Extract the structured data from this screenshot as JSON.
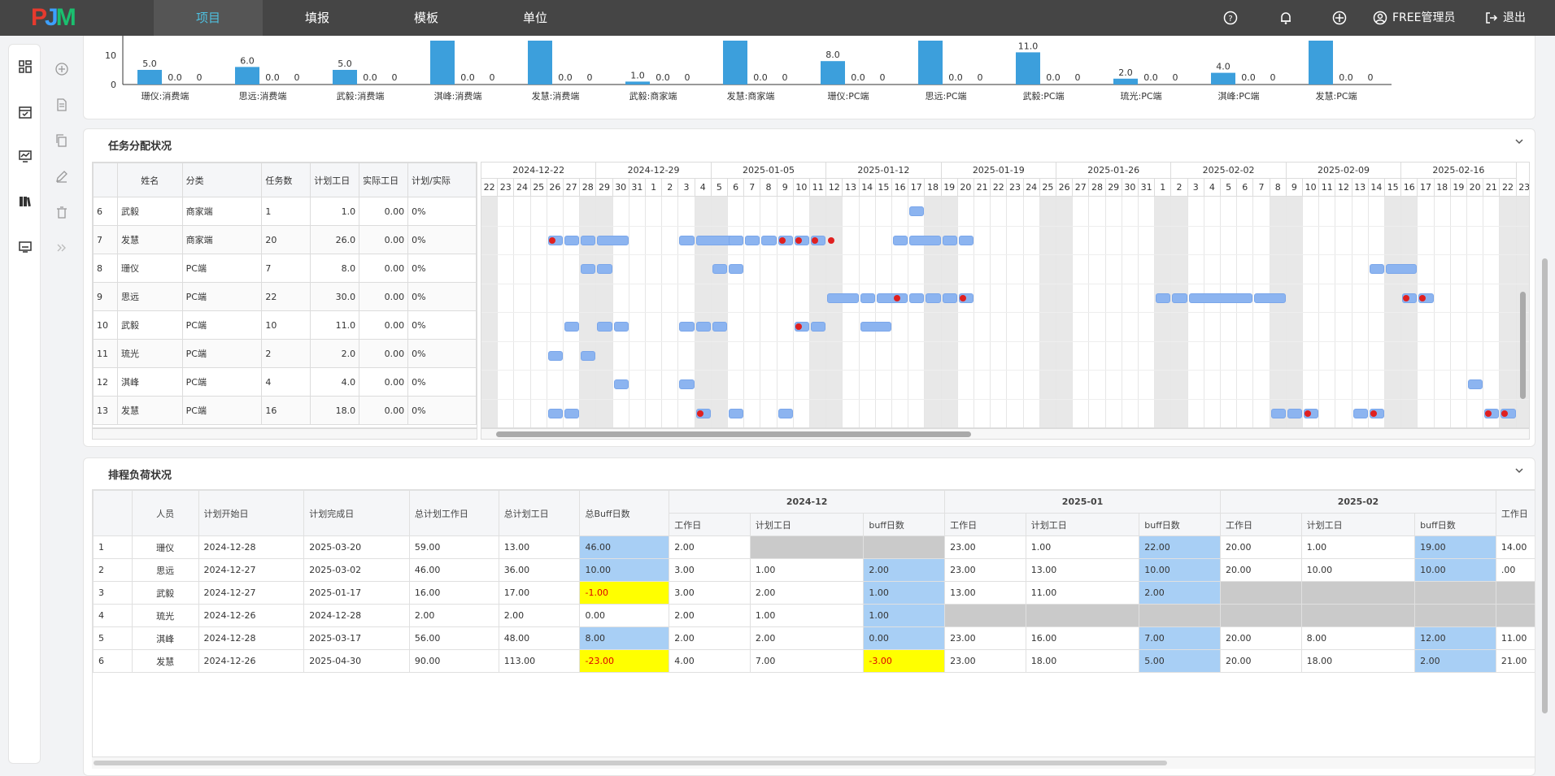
{
  "header": {
    "logo": {
      "p": "P",
      "j": "J",
      "m": "M"
    },
    "tabs": [
      {
        "label": "项目",
        "active": true
      },
      {
        "label": "填报",
        "active": false
      },
      {
        "label": "模板",
        "active": false
      },
      {
        "label": "单位",
        "active": false
      }
    ],
    "icons": [
      "help-icon",
      "bell-icon",
      "globe-icon"
    ],
    "user": "FREE管理员",
    "logout": "退出"
  },
  "sidebar": {
    "icons": [
      "dashboard-icon",
      "calendar-check-icon",
      "chart-monitor-icon",
      "books-icon",
      "monitor-icon"
    ]
  },
  "toolbar": {
    "icons": [
      "add-icon",
      "document-icon",
      "copy-icon",
      "edit-icon",
      "delete-icon",
      "double-chevron-right-icon"
    ]
  },
  "chart_data": {
    "type": "bar",
    "ylim": [
      0,
      12
    ],
    "yticks": [
      0,
      10
    ],
    "groups": [
      {
        "label": "珊仪:消费端",
        "values": [
          "5.0",
          "0.0",
          "0"
        ],
        "v": 5.0
      },
      {
        "label": "思远:消费端",
        "values": [
          "6.0",
          "0.0",
          "0"
        ],
        "v": 6.0
      },
      {
        "label": "武毅:消费端",
        "values": [
          "5.0",
          "0.0",
          "0"
        ],
        "v": 5.0
      },
      {
        "label": "淇峰:消费端",
        "values": [
          "",
          "0.0",
          "0"
        ],
        "v": 15
      },
      {
        "label": "发慧:消费端",
        "values": [
          "",
          "0.0",
          "0"
        ],
        "v": 15
      },
      {
        "label": "武毅:商家端",
        "values": [
          "1.0",
          "0.0",
          "0"
        ],
        "v": 1.0
      },
      {
        "label": "发慧:商家端",
        "values": [
          "",
          "0.0",
          "0"
        ],
        "v": 15
      },
      {
        "label": "珊仪:PC端",
        "values": [
          "8.0",
          "0.0",
          "0"
        ],
        "v": 8.0
      },
      {
        "label": "思远:PC端",
        "values": [
          "",
          "0.0",
          "0"
        ],
        "v": 15
      },
      {
        "label": "武毅:PC端",
        "values": [
          "11.0",
          "0.0",
          "0"
        ],
        "v": 11.0
      },
      {
        "label": "琉光:PC端",
        "values": [
          "2.0",
          "0.0",
          "0"
        ],
        "v": 2.0
      },
      {
        "label": "淇峰:PC端",
        "values": [
          "4.0",
          "0.0",
          "0"
        ],
        "v": 4.0
      },
      {
        "label": "发慧:PC端",
        "values": [
          "",
          "0.0",
          "0"
        ],
        "v": 15
      }
    ]
  },
  "task_panel": {
    "title": "任务分配状况",
    "columns": [
      "姓名",
      "分类",
      "任务数",
      "计划工日",
      "实际工日",
      "计划/实际"
    ],
    "rows": [
      [
        "6",
        "武毅",
        "商家端",
        "1",
        "1.0",
        "0.00",
        "0%"
      ],
      [
        "7",
        "发慧",
        "商家端",
        "20",
        "26.0",
        "0.00",
        "0%"
      ],
      [
        "8",
        "珊仪",
        "PC端",
        "7",
        "8.0",
        "0.00",
        "0%"
      ],
      [
        "9",
        "思远",
        "PC端",
        "22",
        "30.0",
        "0.00",
        "0%"
      ],
      [
        "10",
        "武毅",
        "PC端",
        "10",
        "11.0",
        "0.00",
        "0%"
      ],
      [
        "11",
        "琉光",
        "PC端",
        "2",
        "2.0",
        "0.00",
        "0%"
      ],
      [
        "12",
        "淇峰",
        "PC端",
        "4",
        "4.0",
        "0.00",
        "0%"
      ],
      [
        "13",
        "发慧",
        "PC端",
        "16",
        "18.0",
        "0.00",
        "0%"
      ]
    ],
    "weeks": [
      "2024-12-22",
      "2024-12-29",
      "2025-01-05",
      "2025-01-12",
      "2025-01-19",
      "2025-01-26",
      "2025-02-02",
      "2025-02-09",
      "2025-02-16"
    ],
    "days": [
      "22",
      "23",
      "24",
      "25",
      "26",
      "27",
      "28",
      "29",
      "30",
      "31",
      "1",
      "2",
      "3",
      "4",
      "5",
      "6",
      "7",
      "8",
      "9",
      "10",
      "11",
      "12",
      "13",
      "14",
      "15",
      "16",
      "17",
      "18",
      "19",
      "20",
      "21",
      "22",
      "23",
      "24",
      "25",
      "26",
      "27",
      "28",
      "29",
      "30",
      "31",
      "1",
      "2",
      "3",
      "4",
      "5",
      "6",
      "7",
      "8",
      "9",
      "10",
      "11",
      "12",
      "13",
      "14",
      "15",
      "16",
      "17",
      "18",
      "19",
      "20",
      "21",
      "22",
      "23"
    ],
    "tasks": [
      [
        [
          26,
          1
        ]
      ],
      [
        [
          4,
          1
        ],
        [
          5,
          1
        ],
        [
          6,
          1
        ],
        [
          7,
          2
        ],
        [
          12,
          1
        ],
        [
          13,
          3
        ],
        [
          15,
          1
        ],
        [
          16,
          1
        ],
        [
          17,
          1
        ],
        [
          18,
          1
        ],
        [
          19,
          1
        ],
        [
          20,
          1
        ],
        [
          25,
          1
        ],
        [
          26,
          2
        ],
        [
          28,
          1
        ],
        [
          29,
          1
        ]
      ],
      [
        [
          6,
          1
        ],
        [
          7,
          1
        ],
        [
          14,
          1
        ],
        [
          15,
          1
        ],
        [
          54,
          1
        ],
        [
          55,
          2
        ]
      ],
      [
        [
          21,
          2
        ],
        [
          23,
          1
        ],
        [
          24,
          2
        ],
        [
          26,
          1
        ],
        [
          27,
          1
        ],
        [
          28,
          1
        ],
        [
          29,
          1
        ],
        [
          41,
          1
        ],
        [
          42,
          1
        ],
        [
          43,
          4
        ],
        [
          47,
          2
        ],
        [
          56,
          1
        ],
        [
          57,
          1
        ]
      ],
      [
        [
          5,
          1
        ],
        [
          7,
          1
        ],
        [
          8,
          1
        ],
        [
          12,
          1
        ],
        [
          13,
          1
        ],
        [
          14,
          1
        ],
        [
          19,
          1
        ],
        [
          20,
          1
        ],
        [
          23,
          2
        ]
      ],
      [
        [
          4,
          1
        ],
        [
          6,
          1
        ]
      ],
      [
        [
          8,
          1
        ],
        [
          12,
          1
        ],
        [
          60,
          1
        ]
      ],
      [
        [
          4,
          1
        ],
        [
          5,
          1
        ],
        [
          13,
          1
        ],
        [
          15,
          1
        ],
        [
          18,
          1
        ],
        [
          48,
          1
        ],
        [
          49,
          1
        ],
        [
          50,
          1
        ],
        [
          53,
          1
        ],
        [
          54,
          1
        ],
        [
          61,
          1
        ],
        [
          62,
          1
        ]
      ]
    ],
    "dots": [
      [],
      [
        4,
        18,
        19,
        20,
        21
      ],
      [],
      [
        25,
        29,
        56,
        57
      ],
      [
        19
      ],
      [],
      [],
      [
        13,
        50,
        54,
        61,
        62
      ]
    ]
  },
  "schedule_panel": {
    "title": "排程负荷状况",
    "columns": [
      "人员",
      "计划开始日",
      "计划完成日",
      "总计划工作日",
      "总计划工日",
      "总Buff日数"
    ],
    "months": [
      "2024-12",
      "2025-01",
      "2025-02"
    ],
    "sub_columns": [
      "工作日",
      "计划工日",
      "buff日数"
    ],
    "extra_column": "工作日",
    "rows": [
      {
        "cells": [
          "1",
          "珊仪",
          "2024-12-28",
          "2025-03-20",
          "59.00",
          "13.00",
          "46.00"
        ],
        "buff": "bl",
        "months": [
          [
            "2.00",
            "",
            "",
            ""
          ],
          [
            "23.00",
            "1.00",
            "22.00"
          ],
          [
            "20.00",
            "1.00",
            "19.00"
          ]
        ],
        "mcls": [
          [
            "",
            "gr",
            "gr"
          ],
          [
            "",
            "",
            "bl"
          ],
          [
            "",
            "",
            "bl"
          ]
        ],
        "extra": "14.00"
      },
      {
        "cells": [
          "2",
          "思远",
          "2024-12-27",
          "2025-03-02",
          "46.00",
          "36.00",
          "10.00"
        ],
        "buff": "bl",
        "months": [
          [
            "3.00",
            "1.00",
            "2.00"
          ],
          [
            "23.00",
            "13.00",
            "10.00"
          ],
          [
            "20.00",
            "10.00",
            "10.00"
          ]
        ],
        "mcls": [
          [
            "",
            "",
            "bl"
          ],
          [
            "",
            "",
            "bl"
          ],
          [
            "",
            "",
            "bl"
          ]
        ],
        "extra": ".00"
      },
      {
        "cells": [
          "3",
          "武毅",
          "2024-12-27",
          "2025-01-17",
          "16.00",
          "17.00",
          "-1.00"
        ],
        "buff": "ye",
        "months": [
          [
            "3.00",
            "2.00",
            "1.00"
          ],
          [
            "13.00",
            "11.00",
            "2.00"
          ],
          [
            "",
            "",
            ""
          ]
        ],
        "mcls": [
          [
            "",
            "",
            "bl"
          ],
          [
            "",
            "",
            "bl"
          ],
          [
            "gr",
            "gr",
            "gr"
          ]
        ],
        "extra": ""
      },
      {
        "cells": [
          "4",
          "琉光",
          "2024-12-26",
          "2024-12-28",
          "2.00",
          "2.00",
          "0.00"
        ],
        "buff": "",
        "months": [
          [
            "2.00",
            "1.00",
            "1.00"
          ],
          [
            "",
            "",
            ""
          ],
          [
            "",
            "",
            ""
          ]
        ],
        "mcls": [
          [
            "",
            "",
            "bl"
          ],
          [
            "gr",
            "gr",
            "gr"
          ],
          [
            "gr",
            "gr",
            "gr"
          ]
        ],
        "extra": ""
      },
      {
        "cells": [
          "5",
          "淇峰",
          "2024-12-28",
          "2025-03-17",
          "56.00",
          "48.00",
          "8.00"
        ],
        "buff": "bl",
        "months": [
          [
            "2.00",
            "2.00",
            "0.00"
          ],
          [
            "23.00",
            "16.00",
            "7.00"
          ],
          [
            "20.00",
            "8.00",
            "12.00"
          ]
        ],
        "mcls": [
          [
            "",
            "",
            "bl"
          ],
          [
            "",
            "",
            "bl"
          ],
          [
            "",
            "",
            "bl"
          ]
        ],
        "extra": "11.00"
      },
      {
        "cells": [
          "6",
          "发慧",
          "2024-12-26",
          "2025-04-30",
          "90.00",
          "113.00",
          "-23.00"
        ],
        "buff": "ye",
        "months": [
          [
            "4.00",
            "7.00",
            "-3.00"
          ],
          [
            "23.00",
            "18.00",
            "5.00"
          ],
          [
            "20.00",
            "18.00",
            "2.00"
          ]
        ],
        "mcls": [
          [
            "",
            "",
            "ye"
          ],
          [
            "",
            "",
            "bl"
          ],
          [
            "",
            "",
            "bl"
          ]
        ],
        "extra": "21.00"
      }
    ]
  }
}
